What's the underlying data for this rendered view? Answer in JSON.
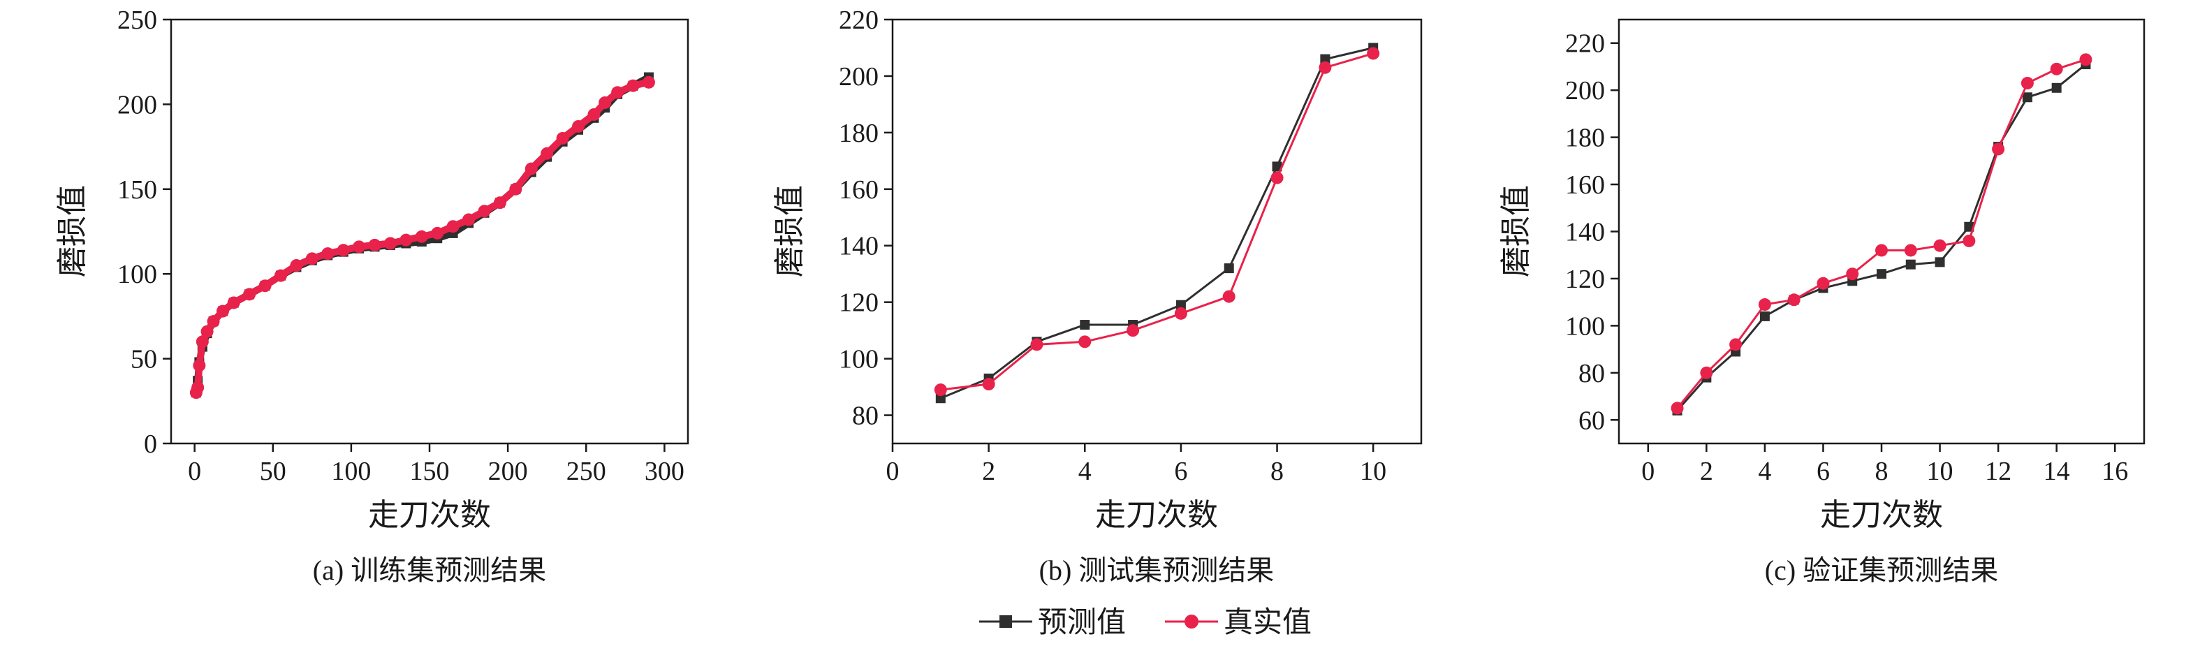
{
  "colors": {
    "predicted": "#2f2f2f",
    "actual": "#e8224a",
    "axis": "#1a1a1a"
  },
  "legend": {
    "predicted_label": "预测值",
    "actual_label": "真实值",
    "placement": "bottom-center"
  },
  "chart_data": [
    {
      "type": "line",
      "caption": "(a) 训练集预测结果",
      "xlabel": "走刀次数",
      "ylabel": "磨损值",
      "xlim": [
        -15,
        315
      ],
      "ylim": [
        0,
        250
      ],
      "xticks": [
        0,
        50,
        100,
        150,
        200,
        250,
        300
      ],
      "yticks": [
        0,
        50,
        100,
        150,
        200,
        250
      ],
      "grid": false,
      "dense": true,
      "series": [
        {
          "name": "预测值",
          "marker": "square",
          "x": [
            1,
            2,
            3,
            5,
            8,
            12,
            18,
            25,
            35,
            45,
            55,
            65,
            75,
            85,
            95,
            105,
            115,
            125,
            135,
            145,
            155,
            165,
            175,
            185,
            195,
            205,
            215,
            225,
            235,
            245,
            255,
            262,
            270,
            280,
            290
          ],
          "y": [
            30,
            37,
            48,
            57,
            65,
            72,
            78,
            83,
            88,
            93,
            99,
            104,
            108,
            111,
            113,
            115,
            116,
            117,
            118,
            119,
            121,
            124,
            130,
            136,
            142,
            150,
            160,
            169,
            178,
            185,
            192,
            198,
            206,
            211,
            216
          ]
        },
        {
          "name": "真实值",
          "marker": "circle",
          "x": [
            1,
            2,
            3,
            5,
            8,
            12,
            18,
            25,
            35,
            45,
            55,
            65,
            75,
            85,
            95,
            105,
            115,
            125,
            135,
            145,
            155,
            165,
            175,
            185,
            195,
            205,
            215,
            225,
            235,
            245,
            255,
            262,
            270,
            280,
            290
          ],
          "y": [
            30,
            33,
            46,
            60,
            66,
            72,
            78,
            83,
            88,
            93,
            99,
            105,
            109,
            112,
            114,
            116,
            117,
            118,
            120,
            122,
            124,
            128,
            132,
            137,
            142,
            150,
            162,
            171,
            180,
            187,
            194,
            201,
            207,
            211,
            213
          ]
        }
      ]
    },
    {
      "type": "line",
      "caption": "(b) 测试集预测结果",
      "xlabel": "走刀次数",
      "ylabel": "磨损值",
      "xlim": [
        0,
        11
      ],
      "ylim": [
        70,
        220
      ],
      "xticks": [
        0,
        2,
        4,
        6,
        8,
        10
      ],
      "yticks": [
        80,
        100,
        120,
        140,
        160,
        180,
        200,
        220
      ],
      "grid": false,
      "series": [
        {
          "name": "预测值",
          "marker": "square",
          "x": [
            1,
            2,
            3,
            4,
            5,
            6,
            7,
            8,
            9,
            10
          ],
          "y": [
            86,
            93,
            106,
            112,
            112,
            119,
            132,
            168,
            206,
            210
          ]
        },
        {
          "name": "真实值",
          "marker": "circle",
          "x": [
            1,
            2,
            3,
            4,
            5,
            6,
            7,
            8,
            9,
            10
          ],
          "y": [
            89,
            91,
            105,
            106,
            110,
            116,
            122,
            164,
            203,
            208
          ]
        }
      ]
    },
    {
      "type": "line",
      "caption": "(c) 验证集预测结果",
      "xlabel": "走刀次数",
      "ylabel": "磨损值",
      "xlim": [
        -1,
        17
      ],
      "ylim": [
        50,
        230
      ],
      "xticks": [
        0,
        2,
        4,
        6,
        8,
        10,
        12,
        14,
        16
      ],
      "yticks": [
        60,
        80,
        100,
        120,
        140,
        160,
        180,
        200,
        220
      ],
      "grid": false,
      "series": [
        {
          "name": "预测值",
          "marker": "square",
          "x": [
            1,
            2,
            3,
            4,
            5,
            6,
            7,
            8,
            9,
            10,
            11,
            12,
            13,
            14,
            15
          ],
          "y": [
            64,
            78,
            89,
            104,
            111,
            116,
            119,
            122,
            126,
            127,
            142,
            176,
            197,
            201,
            211
          ]
        },
        {
          "name": "真实值",
          "marker": "circle",
          "x": [
            1,
            2,
            3,
            4,
            5,
            6,
            7,
            8,
            9,
            10,
            11,
            12,
            13,
            14,
            15
          ],
          "y": [
            65,
            80,
            92,
            109,
            111,
            118,
            122,
            132,
            132,
            134,
            136,
            175,
            203,
            209,
            213
          ]
        }
      ]
    }
  ]
}
